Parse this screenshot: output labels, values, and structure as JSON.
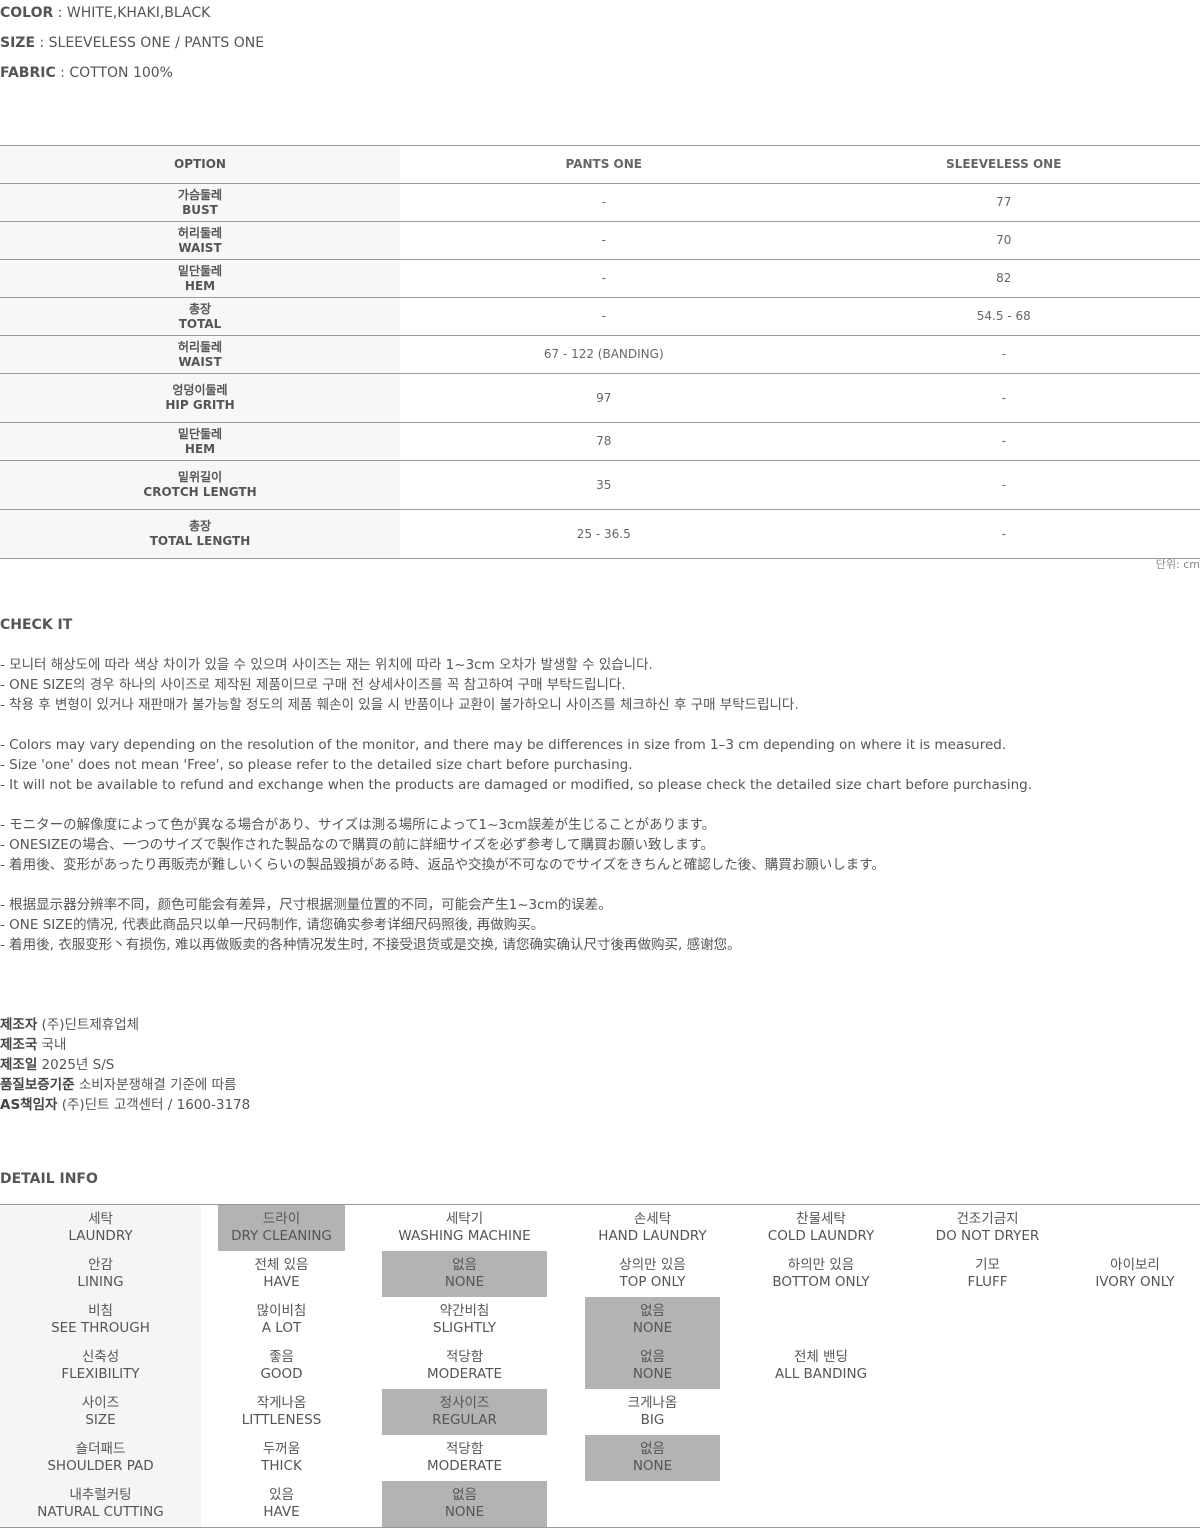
{
  "specs": [
    {
      "label": "COLOR",
      "value": " : WHITE,KHAKI,BLACK"
    },
    {
      "label": "SIZE",
      "value": " : SLEEVELESS ONE / PANTS ONE"
    },
    {
      "label": "FABRIC",
      "value": " : COTTON 100%"
    }
  ],
  "size_table": {
    "headers": [
      "OPTION",
      "PANTS ONE",
      "SLEEVELESS ONE"
    ],
    "rows": [
      {
        "ko": "가슴둘레",
        "en": "BUST",
        "pants": "-",
        "sleeveless": "77"
      },
      {
        "ko": "허리둘레",
        "en": "WAIST",
        "pants": "-",
        "sleeveless": "70"
      },
      {
        "ko": "밑단둘레",
        "en": "HEM",
        "pants": "-",
        "sleeveless": "82"
      },
      {
        "ko": "총장",
        "en": "TOTAL",
        "pants": "-",
        "sleeveless": "54.5 - 68"
      },
      {
        "ko": "허리둘레",
        "en": "WAIST",
        "pants": "67 - 122 (BANDING)",
        "sleeveless": "-"
      },
      {
        "ko": "엉덩이둘레",
        "en": "HIP GRITH",
        "pants": "97",
        "sleeveless": "-"
      },
      {
        "ko": "밑단둘레",
        "en": "HEM",
        "pants": "78",
        "sleeveless": "-"
      },
      {
        "ko": "밑위길이",
        "en": "CROTCH LENGTH",
        "pants": "35",
        "sleeveless": "-"
      },
      {
        "ko": "총장",
        "en": "TOTAL LENGTH",
        "pants": "25 - 36.5",
        "sleeveless": "-"
      }
    ],
    "unit": "단위: cm"
  },
  "check": {
    "title": "CHECK IT",
    "paragraphs": [
      "- 모니터 해상도에 따라 색상 차이가 있을 수 있으며 사이즈는 재는 위치에 따라 1~3cm 오차가 발생할 수 있습니다.\n- ONE SIZE의 경우 하나의 사이즈로 제작된 제품이므로 구매 전 상세사이즈를 꼭 참고하여 구매 부탁드립니다.\n- 착용 후 변형이 있거나 재판매가 불가능할 정도의 제품 훼손이 있을 시 반품이나 교환이 불가하오니 사이즈를 체크하신 후 구매 부탁드립니다.",
      "- Colors may vary depending on the resolution of the monitor, and there may be differences in size from 1–3 cm depending on where it is measured.\n- Size 'one' does not mean 'Free', so please refer to the detailed size chart before purchasing.\n- It will not be available to refund and exchange when the products are damaged or modified, so please check the detailed size chart before purchasing.",
      "- モニターの解像度によって色が異なる場合があり、サイズは測る場所によって1~3cm誤差が生じることがあります。\n- ONESIZEの場合、一つのサイズで製作された製品なので購買の前に詳細サイズを必ず参考して購買お願い致します。\n- 着用後、変形があったり再販売が難しいくらいの製品毀損がある時、返品や交換が不可なのでサイズをきちんと確認した後、購買お願いします。",
      "- 根据显示器分辨率不同，颜色可能会有差异，尺寸根据测量位置的不同，可能会产生1~3cm的误差。\n- ONE SIZE的情况, 代表此商品只以单一尺码制作, 请您确实参考详细尺码照後, 再做购买。\n- 着用後, 衣服变形丶有损伤, 难以再做贩卖的各种情况发生时, 不接受退货或是交换, 请您确实确认尺寸後再做购买, 感谢您。"
    ]
  },
  "manufacturer": [
    {
      "label": "제조자",
      "value": " (주)딘트제휴업체"
    },
    {
      "label": "제조국",
      "value": " 국내"
    },
    {
      "label": "제조일",
      "value": " 2025년 S/S"
    },
    {
      "label": "품질보증기준",
      "value": " 소비자분쟁해결 기준에 따름"
    },
    {
      "label": "AS책임자",
      "value": " (주)딘트 고객센터 / 1600-3178"
    }
  ],
  "detail": {
    "title": "DETAIL INFO",
    "rows": [
      {
        "label": [
          "세탁",
          "LAUNDRY"
        ],
        "options": [
          [
            "드라이",
            "DRY CLEANING",
            1
          ],
          [
            "세탁기",
            "WASHING MACHINE",
            0
          ],
          [
            "손세탁",
            "HAND LAUNDRY",
            0
          ],
          [
            "찬물세탁",
            "COLD LAUNDRY",
            0
          ],
          [
            "건조기금지",
            "DO NOT DRYER",
            0
          ]
        ]
      },
      {
        "label": [
          "안감",
          "LINING"
        ],
        "options": [
          [
            "전체 있음",
            "HAVE",
            0
          ],
          [
            "없음",
            "NONE",
            1
          ],
          [
            "상의만 있음",
            "TOP ONLY",
            0
          ],
          [
            "하의만 있음",
            "BOTTOM ONLY",
            0
          ],
          [
            "기모",
            "FLUFF",
            0
          ],
          [
            "아이보리",
            "IVORY ONLY",
            0
          ]
        ]
      },
      {
        "label": [
          "비침",
          "SEE THROUGH"
        ],
        "options": [
          [
            "많이비침",
            "A LOT",
            0
          ],
          [
            "약간비침",
            "SLIGHTLY",
            0
          ],
          [
            "없음",
            "NONE",
            1
          ]
        ]
      },
      {
        "label": [
          "신축성",
          "FLEXIBILITY"
        ],
        "options": [
          [
            "좋음",
            "GOOD",
            0
          ],
          [
            "적당함",
            "MODERATE",
            0
          ],
          [
            "없음",
            "NONE",
            1
          ],
          [
            "전체 밴딩",
            "ALL BANDING",
            0
          ]
        ]
      },
      {
        "label": [
          "사이즈",
          "SIZE"
        ],
        "options": [
          [
            "작게나옴",
            "LITTLENESS",
            0
          ],
          [
            "정사이즈",
            "REGULAR",
            1
          ],
          [
            "크게나옴",
            "BIG",
            0
          ]
        ]
      },
      {
        "label": [
          "숄더패드",
          "SHOULDER PAD"
        ],
        "options": [
          [
            "두꺼움",
            "THICK",
            0
          ],
          [
            "적당함",
            "MODERATE",
            0
          ],
          [
            "없음",
            "NONE",
            1
          ]
        ]
      },
      {
        "label": [
          "내추럴커팅",
          "NATURAL CUTTING"
        ],
        "options": [
          [
            "있음",
            "HAVE",
            0
          ],
          [
            "없음",
            "NONE",
            1
          ]
        ]
      }
    ],
    "highlight_color": "#b3b3b3"
  }
}
